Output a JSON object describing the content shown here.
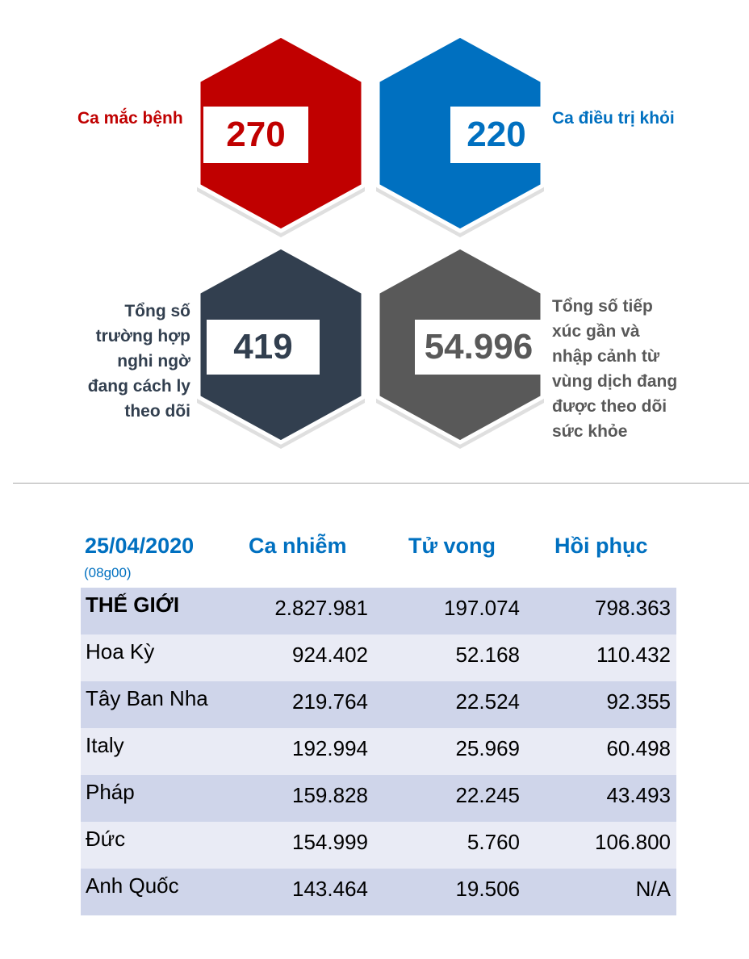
{
  "stats": {
    "cases": {
      "value": "270",
      "label": "Ca mắc bệnh",
      "color": "#c00000"
    },
    "recovered": {
      "value": "220",
      "label": "Ca điều trị khỏi",
      "color": "#0070c0"
    },
    "suspected": {
      "value": "419",
      "label_lines": [
        "Tổng số",
        "trường hợp",
        "nghi ngờ",
        "đang cách ly",
        "theo dõi"
      ],
      "color": "#323f4f"
    },
    "monitored": {
      "value": "54.996",
      "label_lines": [
        "Tổng số tiếp",
        "xúc gần và",
        "nhập cảnh từ",
        "vùng dịch đang",
        "được theo dõi",
        "sức khỏe"
      ],
      "color": "#595959"
    }
  },
  "table": {
    "date": "25/04/2020",
    "time": "(08g00)",
    "headers": [
      "Ca nhiễm",
      "Tử vong",
      "Hồi phục"
    ],
    "rows": [
      {
        "name": "THẾ GIỚI",
        "infected": "2.827.981",
        "deaths": "197.074",
        "recovered": "798.363"
      },
      {
        "name": "Hoa Kỳ",
        "infected": "924.402",
        "deaths": "52.168",
        "recovered": "110.432"
      },
      {
        "name": "Tây Ban Nha",
        "infected": "219.764",
        "deaths": "22.524",
        "recovered": "92.355"
      },
      {
        "name": "Italy",
        "infected": "192.994",
        "deaths": "25.969",
        "recovered": "60.498"
      },
      {
        "name": "Pháp",
        "infected": "159.828",
        "deaths": "22.245",
        "recovered": "43.493"
      },
      {
        "name": "Đức",
        "infected": "154.999",
        "deaths": "5.760",
        "recovered": "106.800"
      },
      {
        "name": "Anh Quốc",
        "infected": "143.464",
        "deaths": "19.506",
        "recovered": "N/A"
      }
    ]
  }
}
